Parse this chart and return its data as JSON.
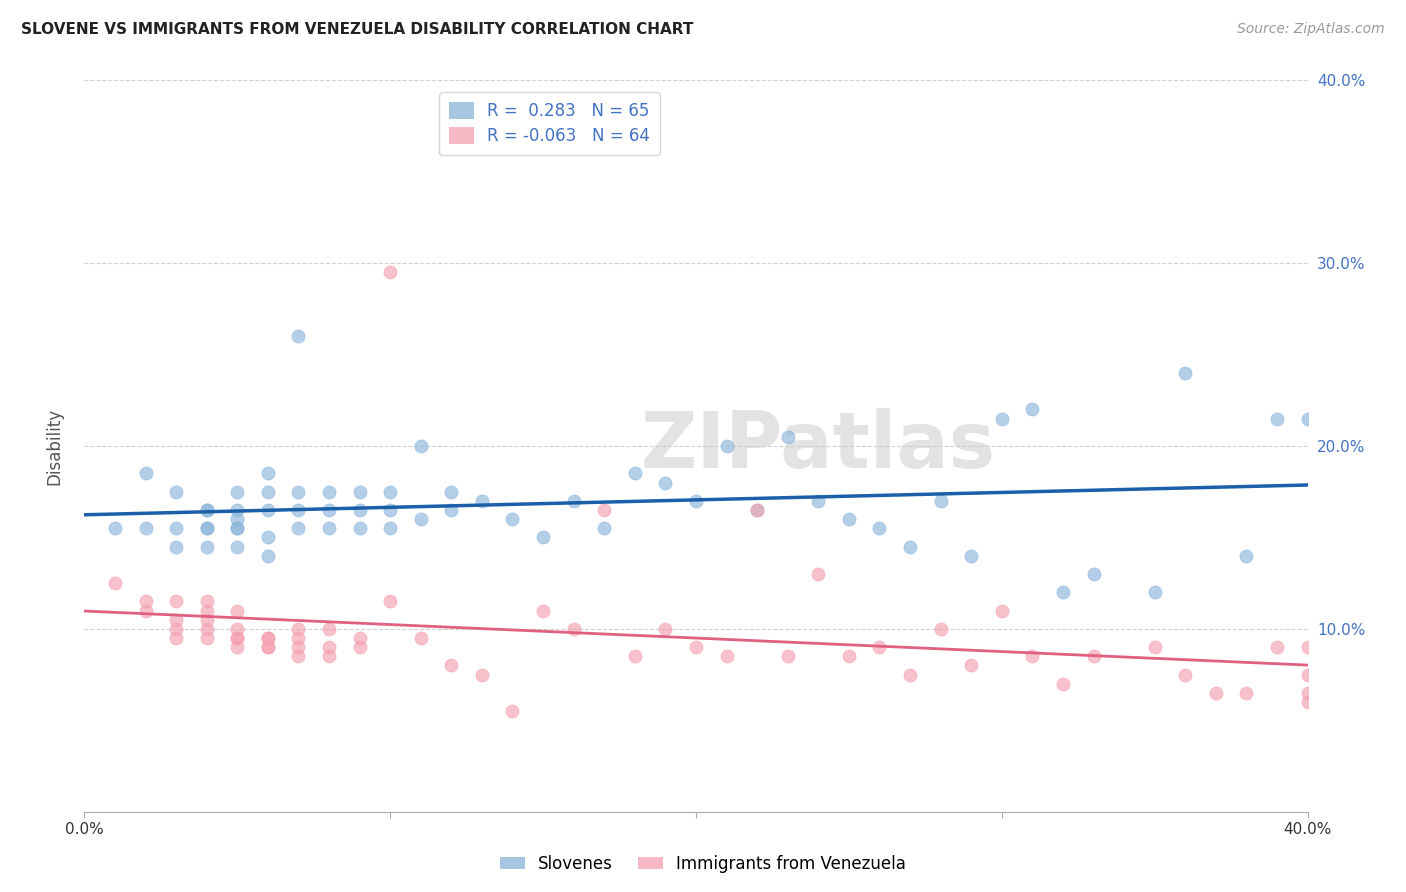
{
  "title": "SLOVENE VS IMMIGRANTS FROM VENEZUELA DISABILITY CORRELATION CHART",
  "source": "Source: ZipAtlas.com",
  "ylabel": "Disability",
  "xlim": [
    0.0,
    0.4
  ],
  "ylim": [
    0.0,
    0.4
  ],
  "slovene_R": 0.283,
  "slovene_N": 65,
  "venezuela_R": -0.063,
  "venezuela_N": 64,
  "background_color": "#ffffff",
  "grid_color": "#cccccc",
  "blue_color": "#8ab4d9",
  "pink_color": "#f4a0b0",
  "blue_line_color": "#1a5fa8",
  "pink_line_color": "#e06080",
  "right_tick_color": "#4472c4",
  "legend_text_color": "#4472c4",
  "watermark": "ZIPatlas",
  "slovene_x": [
    0.01,
    0.02,
    0.02,
    0.03,
    0.03,
    0.03,
    0.04,
    0.04,
    0.04,
    0.04,
    0.04,
    0.05,
    0.05,
    0.05,
    0.05,
    0.05,
    0.05,
    0.06,
    0.06,
    0.06,
    0.06,
    0.06,
    0.07,
    0.07,
    0.07,
    0.07,
    0.08,
    0.08,
    0.08,
    0.09,
    0.09,
    0.09,
    0.1,
    0.1,
    0.1,
    0.11,
    0.11,
    0.12,
    0.12,
    0.13,
    0.14,
    0.15,
    0.16,
    0.17,
    0.18,
    0.19,
    0.2,
    0.21,
    0.22,
    0.23,
    0.24,
    0.25,
    0.26,
    0.27,
    0.28,
    0.29,
    0.3,
    0.31,
    0.32,
    0.33,
    0.35,
    0.36,
    0.38,
    0.39,
    0.4
  ],
  "slovene_y": [
    0.155,
    0.155,
    0.185,
    0.145,
    0.155,
    0.175,
    0.145,
    0.155,
    0.155,
    0.165,
    0.165,
    0.145,
    0.155,
    0.155,
    0.16,
    0.165,
    0.175,
    0.14,
    0.15,
    0.165,
    0.175,
    0.185,
    0.155,
    0.165,
    0.175,
    0.26,
    0.155,
    0.165,
    0.175,
    0.155,
    0.165,
    0.175,
    0.155,
    0.165,
    0.175,
    0.16,
    0.2,
    0.165,
    0.175,
    0.17,
    0.16,
    0.15,
    0.17,
    0.155,
    0.185,
    0.18,
    0.17,
    0.2,
    0.165,
    0.205,
    0.17,
    0.16,
    0.155,
    0.145,
    0.17,
    0.14,
    0.215,
    0.22,
    0.12,
    0.13,
    0.12,
    0.24,
    0.14,
    0.215,
    0.215
  ],
  "venezuela_x": [
    0.01,
    0.02,
    0.02,
    0.03,
    0.03,
    0.03,
    0.03,
    0.04,
    0.04,
    0.04,
    0.04,
    0.04,
    0.05,
    0.05,
    0.05,
    0.05,
    0.05,
    0.06,
    0.06,
    0.06,
    0.06,
    0.07,
    0.07,
    0.07,
    0.07,
    0.08,
    0.08,
    0.08,
    0.09,
    0.09,
    0.1,
    0.1,
    0.11,
    0.12,
    0.13,
    0.14,
    0.15,
    0.16,
    0.17,
    0.18,
    0.19,
    0.2,
    0.21,
    0.22,
    0.23,
    0.24,
    0.25,
    0.26,
    0.27,
    0.28,
    0.29,
    0.3,
    0.31,
    0.32,
    0.33,
    0.35,
    0.36,
    0.37,
    0.38,
    0.39,
    0.4,
    0.4,
    0.4,
    0.4
  ],
  "venezuela_y": [
    0.125,
    0.11,
    0.115,
    0.095,
    0.1,
    0.105,
    0.115,
    0.095,
    0.1,
    0.105,
    0.11,
    0.115,
    0.09,
    0.095,
    0.095,
    0.1,
    0.11,
    0.09,
    0.09,
    0.095,
    0.095,
    0.085,
    0.09,
    0.095,
    0.1,
    0.085,
    0.09,
    0.1,
    0.09,
    0.095,
    0.115,
    0.295,
    0.095,
    0.08,
    0.075,
    0.055,
    0.11,
    0.1,
    0.165,
    0.085,
    0.1,
    0.09,
    0.085,
    0.165,
    0.085,
    0.13,
    0.085,
    0.09,
    0.075,
    0.1,
    0.08,
    0.11,
    0.085,
    0.07,
    0.085,
    0.09,
    0.075,
    0.065,
    0.065,
    0.09,
    0.06,
    0.065,
    0.075,
    0.09
  ]
}
